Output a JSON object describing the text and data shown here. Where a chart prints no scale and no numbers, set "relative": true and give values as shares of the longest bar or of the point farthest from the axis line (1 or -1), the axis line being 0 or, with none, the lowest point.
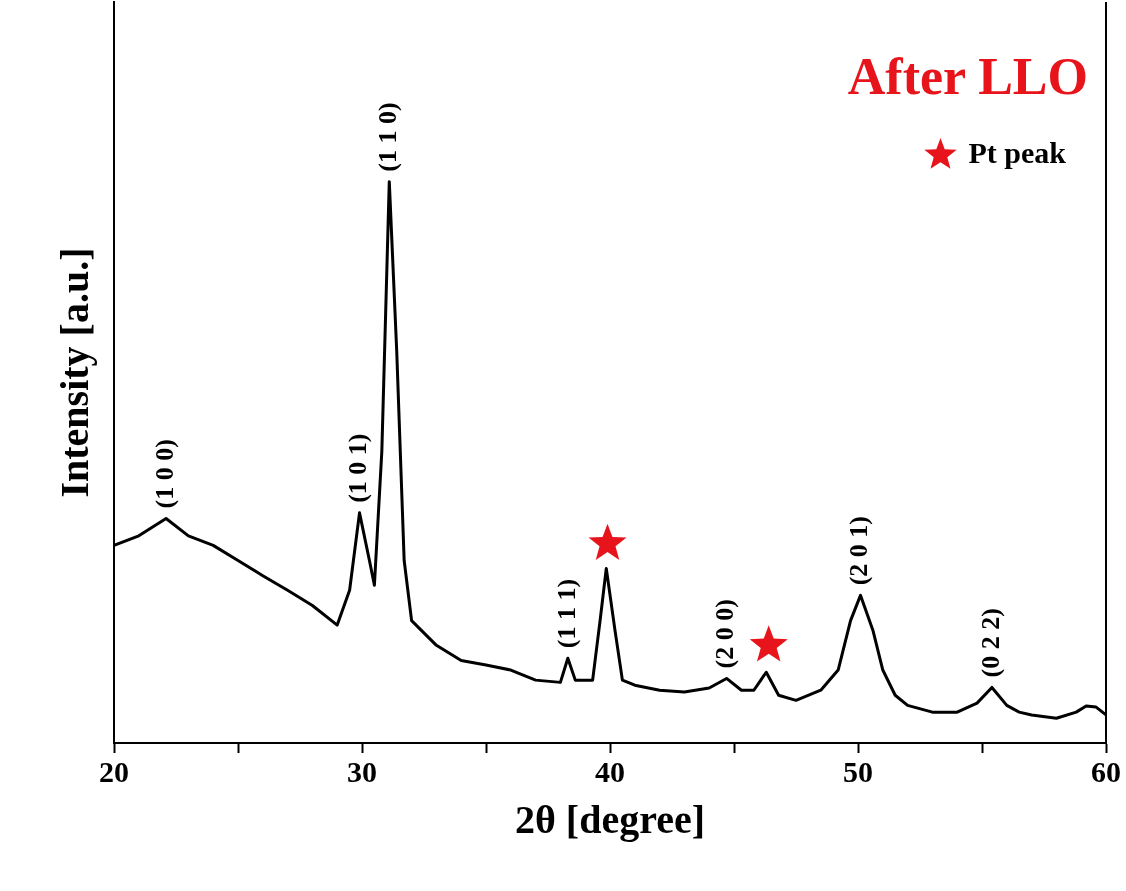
{
  "chart_data": {
    "type": "line",
    "title": "After LLO",
    "xlabel": "2θ [degree]",
    "ylabel": "Intensity [a.u.]",
    "relative": true,
    "legend": "top right",
    "marker": "none",
    "grid": false,
    "xlim": [
      20,
      60
    ],
    "xticks": [
      20,
      {
        "value": 25,
        "label": null
      },
      30,
      {
        "value": 35,
        "label": null
      },
      40,
      {
        "value": 45,
        "label": null
      },
      50,
      {
        "value": 55,
        "label": null
      },
      60
    ],
    "series": [
      {
        "color": "#000000",
        "x": [
          20,
          21,
          22.1,
          23,
          24,
          25,
          26,
          27,
          28,
          29,
          29.5,
          29.9,
          30.3,
          30.5,
          30.8,
          31.1,
          31.4,
          31.7,
          32,
          33,
          34,
          35,
          36,
          37,
          38,
          38.3,
          38.6,
          39.3,
          39.6,
          39.85,
          40.2,
          40.5,
          41,
          42,
          43,
          44,
          44.7,
          45.3,
          45.8,
          46.3,
          46.8,
          47.5,
          48.5,
          49.2,
          49.7,
          50.1,
          50.6,
          51,
          51.5,
          52,
          53,
          54,
          54.8,
          55.4,
          56,
          56.5,
          57,
          58,
          58.8,
          59.2,
          59.6,
          60
        ],
        "values": [
          0.352,
          0.369,
          0.4,
          0.369,
          0.352,
          0.325,
          0.298,
          0.272,
          0.245,
          0.21,
          0.272,
          0.41,
          0.325,
          0.281,
          0.52,
          1,
          0.698,
          0.325,
          0.218,
          0.174,
          0.147,
          0.139,
          0.13,
          0.112,
          0.108,
          0.151,
          0.112,
          0.112,
          0.218,
          0.311,
          0.201,
          0.112,
          0.103,
          0.094,
          0.091,
          0.098,
          0.115,
          0.094,
          0.094,
          0.126,
          0.085,
          0.076,
          0.094,
          0.13,
          0.218,
          0.263,
          0.201,
          0.13,
          0.085,
          0.067,
          0.055,
          0.055,
          0.071,
          0.099,
          0.067,
          0.055,
          0.05,
          0.044,
          0.055,
          0.066,
          0.064,
          0.05
        ]
      },
      {
        "type": "scatter",
        "name": "Pt peak",
        "color": "#e8141b",
        "marker": "star",
        "x": [
          39.9,
          46.4
        ],
        "values": [
          0.355,
          0.174
        ]
      }
    ],
    "annotations": [
      {
        "text": "(1 0 0)",
        "x": 22.1,
        "y": 0.4
      },
      {
        "text": "(1 0 1)",
        "x": 29.9,
        "y": 0.41
      },
      {
        "text": "(1 1 0)",
        "x": 31.1,
        "y": 1
      },
      {
        "text": "(1 1 1)",
        "x": 38.3,
        "y": 0.151
      },
      {
        "text": "(2 0 0)",
        "x": 44.7,
        "y": 0.115
      },
      {
        "text": "(2 0 1)",
        "x": 50.1,
        "y": 0.263
      },
      {
        "text": "(0 2 2)",
        "x": 55.4,
        "y": 0.099
      }
    ]
  }
}
